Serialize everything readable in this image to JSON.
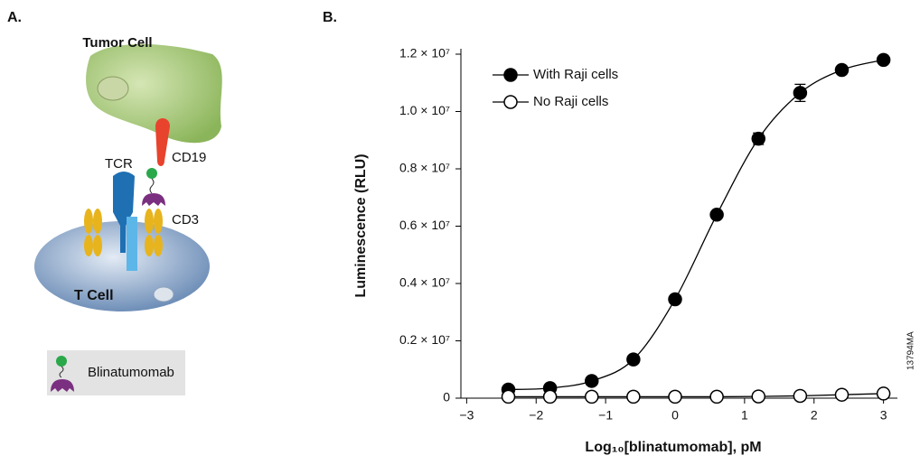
{
  "panel_labels": {
    "a": "A.",
    "b": "B."
  },
  "diagram": {
    "tumor_cell": "Tumor Cell",
    "cd19": "CD19",
    "tcr": "TCR",
    "cd3": "CD3",
    "t_cell": "T Cell",
    "legend": "Blinatumomab"
  },
  "side_code": "13794MA",
  "chart_data": {
    "type": "scatter",
    "x_label": "Log₁₀[blinatumomab], pM",
    "y_label": "Luminescence (RLU)",
    "x": [
      -2.4,
      -1.8,
      -1.2,
      -0.6,
      0,
      0.6,
      1.2,
      1.8,
      2.4,
      3
    ],
    "series": [
      {
        "name": "With Raji cells",
        "color": "#000000",
        "marker_fill": "#000000",
        "curve": "smooth",
        "values": [
          300000,
          350000,
          600000,
          1350000,
          3450000,
          6400000,
          9050000,
          10650000,
          11450000,
          11800000
        ],
        "errors": [
          null,
          null,
          null,
          null,
          null,
          null,
          200000,
          300000,
          null,
          null
        ]
      },
      {
        "name": "No Raji cells",
        "color": "#000000",
        "marker_fill": "#ffffff",
        "curve": "straight",
        "values": [
          50000,
          50000,
          50000,
          50000,
          50000,
          50000,
          60000,
          80000,
          120000,
          160000
        ],
        "errors": [
          null,
          null,
          null,
          null,
          null,
          null,
          null,
          null,
          null,
          null
        ]
      }
    ],
    "xlim": [
      -3.2,
      3.2
    ],
    "xticks": [
      {
        "value": -3,
        "label": "−3"
      },
      {
        "value": -2,
        "label": "−2"
      },
      {
        "value": -1,
        "label": "−1"
      },
      0,
      1,
      2,
      3
    ],
    "ylim": [
      0,
      12000000
    ],
    "yticks": [
      0,
      {
        "value": 2000000,
        "label": "0.2 × 10⁷"
      },
      {
        "value": 4000000,
        "label": "0.4 × 10⁷"
      },
      {
        "value": 6000000,
        "label": "0.6 × 10⁷"
      },
      {
        "value": 8000000,
        "label": "0.8 × 10⁷"
      },
      {
        "value": 10000000,
        "label": "1.0 × 10⁷"
      },
      {
        "value": 12000000,
        "label": "1.2 × 10⁷"
      }
    ],
    "legend": "upper left",
    "grid": false
  }
}
